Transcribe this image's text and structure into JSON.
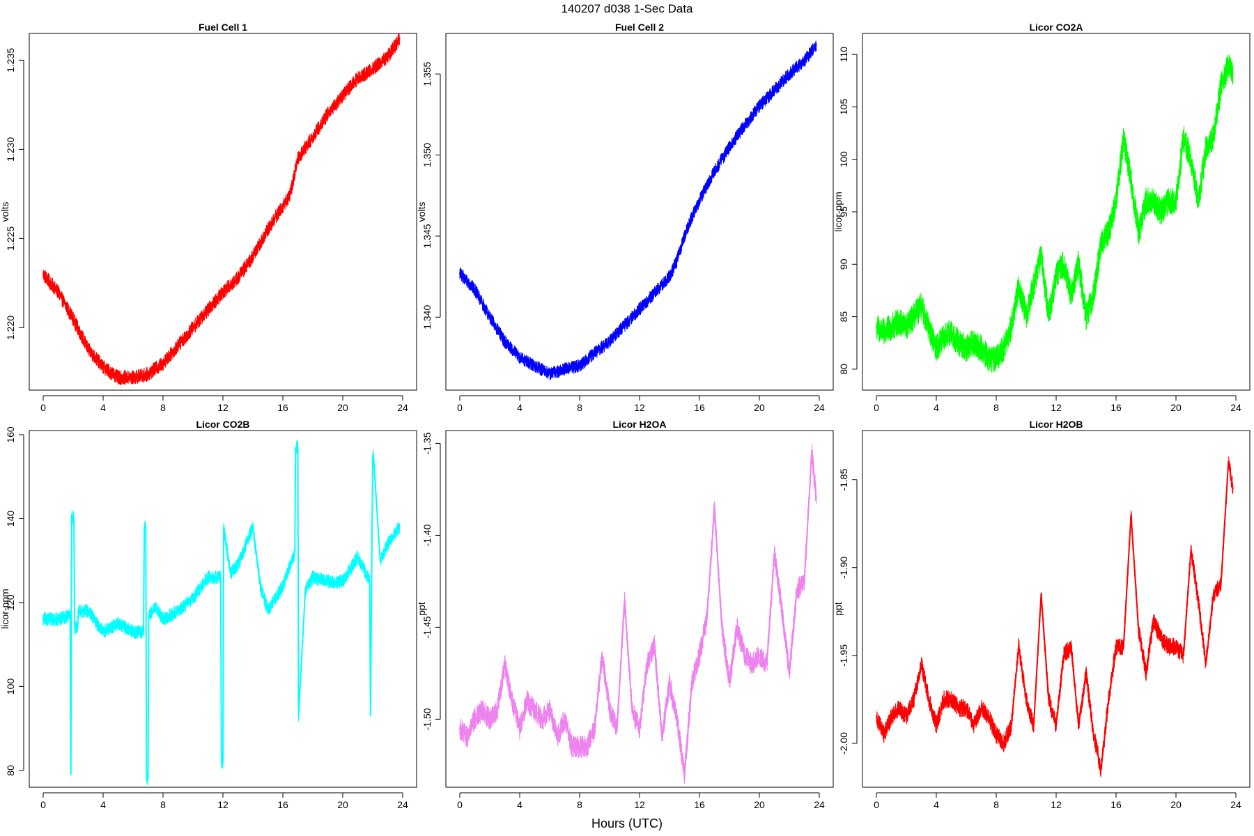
{
  "main_title": "140207   d038   1-Sec Data",
  "x_axis_title": "Hours (UTC)",
  "chart_data": [
    {
      "type": "line",
      "title": "Fuel Cell 1",
      "xlabel": "",
      "ylabel": "volts",
      "color": "#ff0000",
      "xlim": [
        0,
        24
      ],
      "ylim": [
        1.2165,
        1.2365
      ],
      "x_ticks": [
        0,
        4,
        8,
        12,
        16,
        20,
        24
      ],
      "x_tick_labels": [
        "0",
        "4",
        "8",
        "12",
        "16",
        "20",
        "24"
      ],
      "y_ticks": [
        1.22,
        1.225,
        1.23,
        1.235
      ],
      "y_tick_labels": [
        "1.220",
        "1.225",
        "1.230",
        "1.235"
      ],
      "noise": 0.0004,
      "x": [
        0,
        1,
        2,
        3,
        4,
        5,
        6,
        7,
        8,
        9,
        10,
        11,
        12,
        13,
        14,
        15,
        15.5,
        16,
        16.5,
        17,
        18,
        19,
        20,
        21,
        22,
        23,
        23.8
      ],
      "y": [
        1.223,
        1.222,
        1.2205,
        1.2188,
        1.2178,
        1.2172,
        1.2172,
        1.2174,
        1.218,
        1.219,
        1.22,
        1.221,
        1.222,
        1.2228,
        1.224,
        1.2255,
        1.2262,
        1.2268,
        1.2275,
        1.2295,
        1.2307,
        1.232,
        1.233,
        1.234,
        1.2345,
        1.2352,
        1.2362
      ]
    },
    {
      "type": "line",
      "title": "Fuel Cell 2",
      "xlabel": "",
      "ylabel": "volts",
      "color": "#0000ff",
      "xlim": [
        0,
        24
      ],
      "ylim": [
        1.3355,
        1.3575
      ],
      "x_ticks": [
        0,
        4,
        8,
        12,
        16,
        20,
        24
      ],
      "x_tick_labels": [
        "0",
        "4",
        "8",
        "12",
        "16",
        "20",
        "24"
      ],
      "y_ticks": [
        1.34,
        1.345,
        1.35,
        1.355
      ],
      "y_tick_labels": [
        "1.340",
        "1.345",
        "1.350",
        "1.355"
      ],
      "noise": 0.0004,
      "x": [
        0,
        1,
        2,
        3,
        4,
        5,
        6,
        7,
        8,
        9,
        10,
        11,
        12,
        13,
        14,
        14.5,
        15,
        15.5,
        16,
        17,
        18,
        19,
        20,
        21,
        22,
        23,
        23.8
      ],
      "y": [
        1.3427,
        1.3417,
        1.34,
        1.3385,
        1.3375,
        1.337,
        1.3365,
        1.3368,
        1.337,
        1.3378,
        1.3385,
        1.3395,
        1.3405,
        1.3415,
        1.3425,
        1.3435,
        1.345,
        1.3462,
        1.3472,
        1.349,
        1.3505,
        1.3518,
        1.353,
        1.354,
        1.355,
        1.3558,
        1.3568
      ]
    },
    {
      "type": "line",
      "title": "Licor CO2A",
      "xlabel": "",
      "ylabel": "licor-ppm",
      "color": "#00ff00",
      "xlim": [
        0,
        24
      ],
      "ylim": [
        78,
        112
      ],
      "x_ticks": [
        0,
        4,
        8,
        12,
        16,
        20,
        24
      ],
      "x_tick_labels": [
        "0",
        "4",
        "8",
        "12",
        "16",
        "20",
        "24"
      ],
      "y_ticks": [
        80,
        85,
        90,
        95,
        100,
        105,
        110
      ],
      "y_tick_labels": [
        "80",
        "85",
        "90",
        "95",
        "100",
        "105",
        "110"
      ],
      "noise": 1.3,
      "x": [
        0,
        0.5,
        1,
        1.5,
        2,
        2.5,
        3,
        3.5,
        4,
        4.5,
        5,
        5.5,
        6,
        6.5,
        7,
        7.5,
        8,
        8.5,
        9,
        9.5,
        10,
        10.5,
        11,
        11.5,
        12,
        12.5,
        13,
        13.5,
        14,
        14.5,
        15,
        15.5,
        16,
        16.5,
        17,
        17.5,
        18,
        18.5,
        19,
        19.5,
        20,
        20.5,
        21,
        21.5,
        22,
        22.5,
        23,
        23.5,
        23.8
      ],
      "y": [
        84,
        83.5,
        84,
        84.5,
        84,
        85,
        86,
        84,
        82,
        83,
        83.5,
        82.5,
        82,
        82.5,
        82,
        81,
        81,
        82,
        84,
        88,
        85,
        88,
        91,
        85,
        89,
        90,
        87,
        90,
        85,
        87,
        92,
        93,
        96,
        102,
        98,
        93,
        96,
        96,
        95,
        96,
        96,
        102,
        100,
        96,
        101,
        102,
        107,
        109,
        108
      ]
    },
    {
      "type": "line",
      "title": "Licor CO2B",
      "xlabel": "",
      "ylabel": "licor-ppm",
      "color": "#00ffff",
      "xlim": [
        0,
        24
      ],
      "ylim": [
        76,
        161
      ],
      "x_ticks": [
        0,
        4,
        8,
        12,
        16,
        20,
        24
      ],
      "x_tick_labels": [
        "0",
        "4",
        "8",
        "12",
        "16",
        "20",
        "24"
      ],
      "y_ticks": [
        80,
        100,
        120,
        140,
        160
      ],
      "y_tick_labels": [
        "80",
        "100",
        "120",
        "140",
        "160"
      ],
      "noise": 1.6,
      "x": [
        0,
        1,
        1.8,
        1.85,
        1.9,
        2.05,
        2.1,
        2.3,
        2.35,
        3,
        4,
        5,
        6,
        6.7,
        6.75,
        6.85,
        6.9,
        7.0,
        7.05,
        7.5,
        8,
        9,
        10,
        11,
        11.85,
        11.9,
        12.0,
        12.05,
        12.5,
        13,
        14,
        14.5,
        15,
        16,
        16.8,
        16.85,
        17.0,
        17.05,
        17.5,
        18,
        19,
        20,
        21,
        21.8,
        21.85,
        22.0,
        22.05,
        22.5,
        23,
        23.8
      ],
      "y": [
        116,
        116,
        117,
        79,
        141,
        140,
        114,
        114,
        118,
        118,
        113,
        115,
        113,
        113,
        138,
        138,
        78,
        78,
        117,
        119,
        116,
        118,
        121,
        126,
        126,
        82,
        82,
        138,
        127,
        129,
        138,
        124,
        118,
        124,
        132,
        157,
        157,
        93,
        123,
        126,
        125,
        125,
        131,
        125,
        93,
        155,
        155,
        130,
        134,
        138
      ]
    },
    {
      "type": "line",
      "title": "Licor H2OA",
      "xlabel": "",
      "ylabel": "ppt",
      "color": "#ee82ee",
      "xlim": [
        0,
        24
      ],
      "ylim": [
        -1.537,
        -1.343
      ],
      "x_ticks": [
        0,
        4,
        8,
        12,
        16,
        20,
        24
      ],
      "x_tick_labels": [
        "0",
        "4",
        "8",
        "12",
        "16",
        "20",
        "24"
      ],
      "y_ticks": [
        -1.5,
        -1.45,
        -1.4,
        -1.35
      ],
      "y_tick_labels": [
        "-1.50",
        "-1.45",
        "-1.40",
        "-1.35"
      ],
      "noise": 0.006,
      "x": [
        0,
        0.5,
        1,
        1.5,
        2,
        2.5,
        3,
        3.5,
        4,
        4.5,
        5,
        5.5,
        6,
        6.5,
        7,
        7.5,
        8,
        8.5,
        9,
        9.5,
        10,
        10.5,
        11,
        11.5,
        12,
        12.5,
        13,
        13.5,
        14,
        14.5,
        15,
        15.5,
        16,
        16.5,
        17,
        17.5,
        18,
        18.5,
        19,
        19.5,
        20,
        20.5,
        21,
        21.5,
        22,
        22.5,
        23,
        23.5,
        23.8
      ],
      "y": [
        -1.505,
        -1.51,
        -1.5,
        -1.495,
        -1.5,
        -1.495,
        -1.47,
        -1.49,
        -1.505,
        -1.49,
        -1.495,
        -1.5,
        -1.495,
        -1.51,
        -1.5,
        -1.515,
        -1.515,
        -1.515,
        -1.505,
        -1.465,
        -1.495,
        -1.505,
        -1.435,
        -1.495,
        -1.505,
        -1.47,
        -1.46,
        -1.51,
        -1.48,
        -1.5,
        -1.53,
        -1.48,
        -1.465,
        -1.445,
        -1.385,
        -1.45,
        -1.48,
        -1.45,
        -1.465,
        -1.47,
        -1.465,
        -1.47,
        -1.41,
        -1.44,
        -1.475,
        -1.43,
        -1.425,
        -1.355,
        -1.38
      ]
    },
    {
      "type": "line",
      "title": "Licor H2OB",
      "xlabel": "",
      "ylabel": "ppt",
      "color": "#ff0000",
      "xlim": [
        0,
        24
      ],
      "ylim": [
        -2.025,
        -1.822
      ],
      "x_ticks": [
        0,
        4,
        8,
        12,
        16,
        20,
        24
      ],
      "x_tick_labels": [
        "0",
        "4",
        "8",
        "12",
        "16",
        "20",
        "24"
      ],
      "y_ticks": [
        -2.0,
        -1.95,
        -1.9,
        -1.85
      ],
      "y_tick_labels": [
        "-2.00",
        "-1.95",
        "-1.90",
        "-1.85"
      ],
      "noise": 0.005,
      "x": [
        0,
        0.5,
        1,
        1.5,
        2,
        2.5,
        3,
        3.5,
        4,
        4.5,
        5,
        5.5,
        6,
        6.5,
        7,
        7.5,
        8,
        8.5,
        9,
        9.5,
        10,
        10.5,
        11,
        11.5,
        12,
        12.5,
        13,
        13.5,
        14,
        14.5,
        15,
        15.5,
        16,
        16.5,
        17,
        17.5,
        18,
        18.5,
        19,
        19.5,
        20,
        20.5,
        21,
        21.5,
        22,
        22.5,
        23,
        23.5,
        23.8
      ],
      "y": [
        -1.985,
        -1.995,
        -1.985,
        -1.98,
        -1.985,
        -1.975,
        -1.955,
        -1.975,
        -1.99,
        -1.975,
        -1.975,
        -1.98,
        -1.98,
        -1.99,
        -1.98,
        -1.985,
        -1.995,
        -2.0,
        -1.99,
        -1.945,
        -1.975,
        -1.99,
        -1.915,
        -1.975,
        -1.99,
        -1.95,
        -1.945,
        -1.99,
        -1.96,
        -1.995,
        -2.015,
        -1.975,
        -1.945,
        -1.945,
        -1.87,
        -1.935,
        -1.96,
        -1.93,
        -1.94,
        -1.945,
        -1.945,
        -1.95,
        -1.89,
        -1.92,
        -1.955,
        -1.915,
        -1.91,
        -1.84,
        -1.855
      ]
    }
  ]
}
